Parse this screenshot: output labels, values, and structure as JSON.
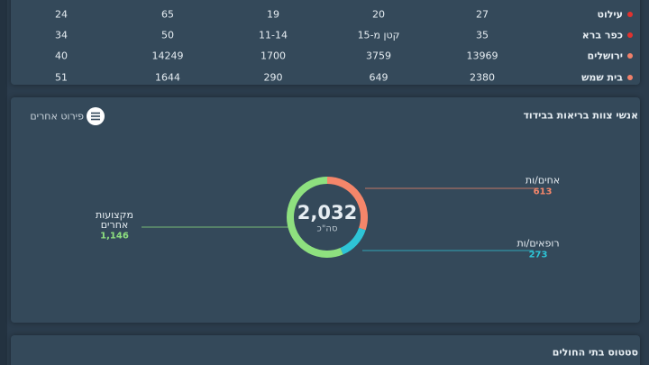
{
  "table": {
    "rows": [
      [
        "עילוט",
        "27",
        "20",
        "19",
        "65",
        "24"
      ],
      [
        "כפר ברא",
        "35",
        "קטן מ-15",
        "11-14",
        "50",
        "34"
      ],
      [
        "ירושלים",
        "13969",
        "3759",
        "1700",
        "14249",
        "40"
      ],
      [
        "בית שמש",
        "2380",
        "649",
        "290",
        "1644",
        "51"
      ]
    ],
    "dot_colors": [
      "#e0322f",
      "#e0322f",
      "#f0806a",
      "#f0806a"
    ]
  },
  "staff_panel": {
    "title": "אנשי צוות בריאות בבידוד",
    "button": "פירוט אחרים",
    "chart_data": {
      "type": "donut",
      "categories": [
        "אחים/ות",
        "רופאים/ות",
        "מקצועות אחרים"
      ],
      "values": [
        613,
        273,
        1146
      ],
      "value_labels": [
        "613",
        "273",
        "1,146"
      ],
      "colors": [
        "#f5866a",
        "#2ec4d6",
        "#8ee07f"
      ],
      "total": {
        "value": 2032,
        "label": "2,032"
      },
      "total_caption": "סה\"כ"
    }
  },
  "hospital_panel": {
    "title": "סטטוס בתי החולים"
  }
}
